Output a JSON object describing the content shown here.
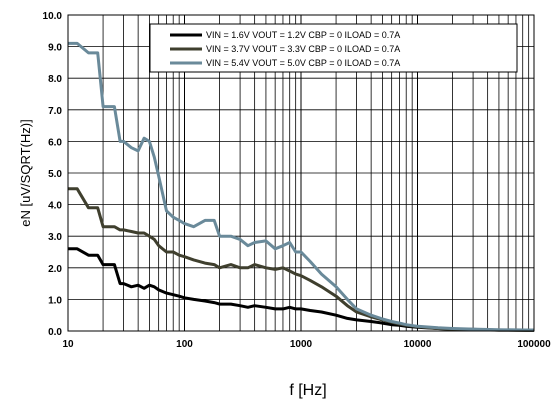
{
  "chart_data": {
    "type": "line",
    "xlabel": "f [Hz]",
    "ylabel": "eN [uV/SQRT(Hz)]",
    "xscale": "log",
    "xlim": [
      10,
      100000
    ],
    "ylim": [
      0,
      10
    ],
    "yticks": [
      "0.0",
      "1.0",
      "2.0",
      "3.0",
      "4.0",
      "5.0",
      "6.0",
      "7.0",
      "8.0",
      "9.0",
      "10.0"
    ],
    "xticks": [
      "10",
      "100",
      "1000",
      "10000",
      "100000"
    ],
    "grid": true,
    "legend_position": "top-right",
    "series": [
      {
        "name": "VIN = 1.6V VOUT = 1.2V CBP = 0 ILOAD = 0.7A",
        "color": "#000000",
        "x": [
          10,
          12,
          15,
          18,
          20,
          25,
          28,
          30,
          35,
          40,
          45,
          50,
          55,
          60,
          70,
          80,
          90,
          100,
          120,
          150,
          180,
          200,
          250,
          300,
          350,
          400,
          500,
          600,
          700,
          800,
          900,
          1000,
          1200,
          1500,
          2000,
          2500,
          3000,
          4000,
          5000,
          6000,
          7000,
          8000,
          10000,
          15000,
          20000,
          30000,
          50000,
          100000
        ],
        "y": [
          2.6,
          2.6,
          2.4,
          2.4,
          2.1,
          2.1,
          1.5,
          1.5,
          1.4,
          1.45,
          1.35,
          1.45,
          1.4,
          1.3,
          1.2,
          1.15,
          1.1,
          1.05,
          1.0,
          0.95,
          0.9,
          0.85,
          0.85,
          0.8,
          0.75,
          0.8,
          0.75,
          0.7,
          0.7,
          0.75,
          0.7,
          0.7,
          0.65,
          0.6,
          0.5,
          0.4,
          0.35,
          0.3,
          0.25,
          0.2,
          0.18,
          0.15,
          0.12,
          0.08,
          0.06,
          0.05,
          0.03,
          0.02
        ]
      },
      {
        "name": "VIN = 3.7V VOUT = 3.3V CBP = 0 ILOAD = 0.7A",
        "color": "#3f3f2e",
        "x": [
          10,
          12,
          15,
          18,
          20,
          25,
          28,
          30,
          35,
          40,
          45,
          50,
          55,
          60,
          70,
          80,
          90,
          100,
          120,
          150,
          180,
          200,
          250,
          300,
          350,
          400,
          500,
          600,
          700,
          800,
          900,
          1000,
          1200,
          1500,
          2000,
          2500,
          3000,
          4000,
          5000,
          6000,
          7000,
          8000,
          10000,
          15000,
          20000,
          30000,
          50000,
          100000
        ],
        "y": [
          4.5,
          4.5,
          3.9,
          3.9,
          3.3,
          3.3,
          3.2,
          3.2,
          3.15,
          3.1,
          3.1,
          3.0,
          2.9,
          2.7,
          2.5,
          2.5,
          2.4,
          2.35,
          2.25,
          2.15,
          2.1,
          2.0,
          2.1,
          2.0,
          2.0,
          2.1,
          2.0,
          1.95,
          2.0,
          1.9,
          1.8,
          1.75,
          1.6,
          1.4,
          1.1,
          0.8,
          0.6,
          0.45,
          0.35,
          0.28,
          0.22,
          0.18,
          0.14,
          0.08,
          0.06,
          0.04,
          0.03,
          0.02
        ]
      },
      {
        "name": "VIN = 5.4V VOUT = 5.0V CBP = 0 ILOAD = 0.7A",
        "color": "#6a8a9a",
        "x": [
          10,
          12,
          15,
          18,
          20,
          25,
          28,
          30,
          35,
          40,
          45,
          50,
          55,
          60,
          70,
          80,
          90,
          100,
          120,
          150,
          180,
          200,
          250,
          300,
          350,
          400,
          500,
          600,
          700,
          800,
          900,
          1000,
          1200,
          1500,
          2000,
          2500,
          3000,
          4000,
          5000,
          6000,
          7000,
          8000,
          10000,
          15000,
          20000,
          30000,
          50000,
          100000
        ],
        "y": [
          9.1,
          9.1,
          8.8,
          8.8,
          7.1,
          7.1,
          6.0,
          6.0,
          5.8,
          5.7,
          6.1,
          6.0,
          5.5,
          4.9,
          3.8,
          3.6,
          3.5,
          3.4,
          3.3,
          3.5,
          3.5,
          3.0,
          3.0,
          2.9,
          2.7,
          2.8,
          2.85,
          2.6,
          2.7,
          2.8,
          2.5,
          2.5,
          2.2,
          1.8,
          1.4,
          1.0,
          0.7,
          0.5,
          0.38,
          0.3,
          0.25,
          0.2,
          0.15,
          0.1,
          0.08,
          0.06,
          0.04,
          0.03
        ]
      }
    ]
  }
}
